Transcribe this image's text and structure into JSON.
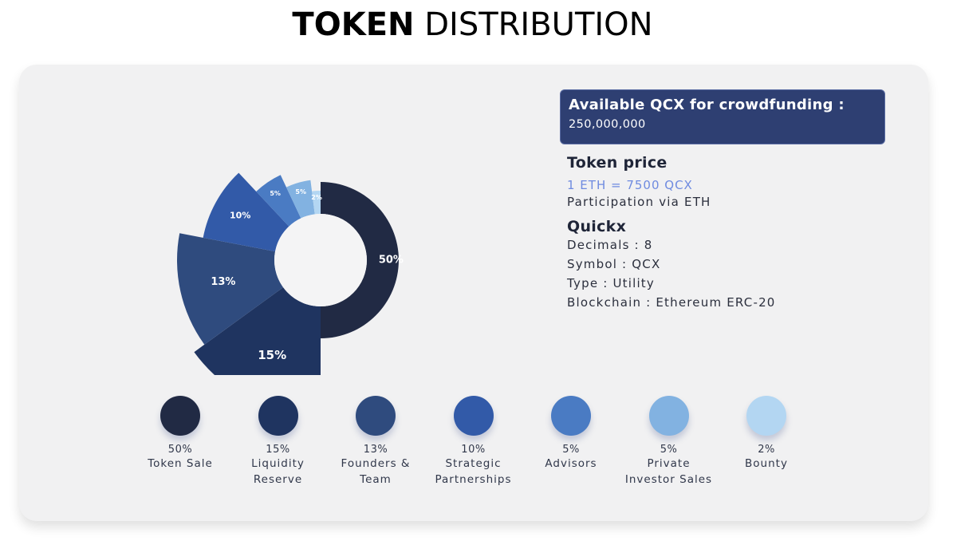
{
  "title": {
    "bold": "TOKEN",
    "light": "DISTRIBUTION"
  },
  "info_box": {
    "headline": "Available QCX for crowdfunding :",
    "amount": "250,000,000"
  },
  "token_price": {
    "heading": "Token price",
    "price": "1 ETH = 7500 QCX",
    "participation": "Participation via ETH"
  },
  "quickx": {
    "heading": "Quickx",
    "decimals": "Decimals : 8",
    "symbol": "Symbol : QCX",
    "type": "Type : Utility",
    "blockchain": "Blockchain : Ethereum ERC-20"
  },
  "legend": [
    {
      "pct": "50%",
      "line1": "Token Sale",
      "line2": "",
      "color": "#212a44"
    },
    {
      "pct": "15%",
      "line1": "Liquidity",
      "line2": "Reserve",
      "color": "#1f3460"
    },
    {
      "pct": "13%",
      "line1": "Founders &",
      "line2": "Team",
      "color": "#2f4b7e"
    },
    {
      "pct": "10%",
      "line1": "Strategic",
      "line2": "Partnerships",
      "color": "#325aa8"
    },
    {
      "pct": "5%",
      "line1": "Advisors",
      "line2": "",
      "color": "#4a7bc3"
    },
    {
      "pct": "5%",
      "line1": "Private",
      "line2": "Investor Sales",
      "color": "#82b2e1"
    },
    {
      "pct": "2%",
      "line1": "Bounty",
      "line2": "",
      "color": "#b3d6f2"
    }
  ],
  "chart_data": {
    "type": "pie",
    "categories": [
      "Token Sale",
      "Liquidity Reserve",
      "Founders & Team",
      "Strategic Partnerships",
      "Advisors",
      "Private Investor Sales",
      "Bounty"
    ],
    "values": [
      50,
      15,
      13,
      10,
      5,
      5,
      2
    ],
    "labels": [
      "50%",
      "15%",
      "13%",
      "10%",
      "5%",
      "5%",
      "2%"
    ],
    "colors": [
      "#212a44",
      "#1f3460",
      "#2f4b7e",
      "#325aa8",
      "#4a7bc3",
      "#82b2e1",
      "#b3d6f2"
    ]
  }
}
